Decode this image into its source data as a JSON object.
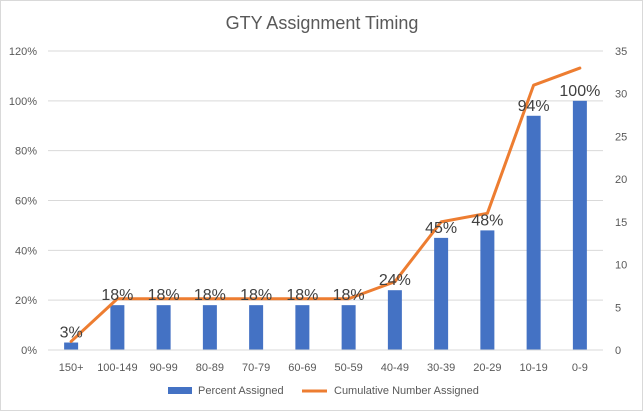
{
  "chart_data": {
    "type": "bar",
    "title": "GTY Assignment Timing",
    "categories": [
      "150+",
      "100-149",
      "90-99",
      "80-89",
      "70-79",
      "60-69",
      "50-59",
      "40-49",
      "30-39",
      "20-29",
      "10-19",
      "0-9"
    ],
    "series": [
      {
        "name": "Percent Assigned",
        "type": "bar",
        "axis": "left",
        "color": "#4472c4",
        "values": [
          3,
          18,
          18,
          18,
          18,
          18,
          18,
          24,
          45,
          48,
          94,
          100
        ],
        "labels": [
          "3%",
          "18%",
          "18%",
          "18%",
          "18%",
          "18%",
          "18%",
          "24%",
          "45%",
          "48%",
          "94%",
          "100%"
        ]
      },
      {
        "name": "Cumulative Number Assigned",
        "type": "line",
        "axis": "right",
        "color": "#ed7d31",
        "values": [
          1,
          6,
          6,
          6,
          6,
          6,
          6,
          8,
          15,
          16,
          31,
          33
        ]
      }
    ],
    "y_left": {
      "min": 0,
      "max": 120,
      "step": 20,
      "tick_labels": [
        "0%",
        "20%",
        "40%",
        "60%",
        "80%",
        "100%",
        "120%"
      ]
    },
    "y_right": {
      "min": 0,
      "max": 35,
      "step": 5,
      "tick_labels": [
        "0",
        "5",
        "10",
        "15",
        "20",
        "25",
        "30",
        "35"
      ]
    },
    "grid": true,
    "legend": "bottom",
    "gridline_color": "#d9d9d9"
  }
}
